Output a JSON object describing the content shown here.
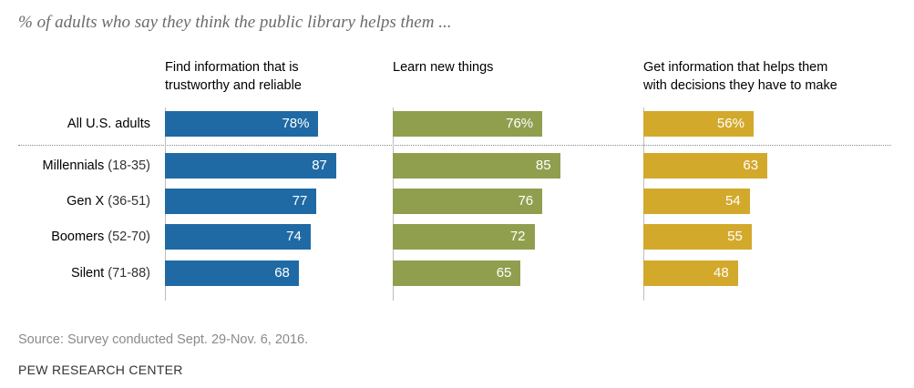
{
  "subtitle": "% of adults who say they think the public library helps them ...",
  "source": "Source: Survey conducted Sept. 29-Nov. 6, 2016.",
  "brand": "PEW RESEARCH CENTER",
  "rows": [
    {
      "name": "All U.S. adults",
      "sub": ""
    },
    {
      "name": "Millennials",
      "sub": "(18-35)"
    },
    {
      "name": "Gen X",
      "sub": "(36-51)"
    },
    {
      "name": "Boomers",
      "sub": "(52-70)"
    },
    {
      "name": "Silent",
      "sub": "(71-88)"
    }
  ],
  "chart_data": {
    "type": "bar",
    "categories": [
      "All U.S. adults",
      "Millennials (18-35)",
      "Gen X (36-51)",
      "Boomers (52-70)",
      "Silent (71-88)"
    ],
    "series": [
      {
        "name": "Find information that is\ntrustworthy and reliable",
        "values": [
          78,
          87,
          77,
          74,
          68
        ],
        "labels": [
          "78%",
          "87",
          "77",
          "74",
          "68"
        ],
        "color": "#1f6aa5"
      },
      {
        "name": "Learn new things",
        "values": [
          76,
          85,
          76,
          72,
          65
        ],
        "labels": [
          "76%",
          "85",
          "76",
          "72",
          "65"
        ],
        "color": "#8f9f4e"
      },
      {
        "name": "Get information that helps them\nwith decisions they have to make",
        "values": [
          56,
          63,
          54,
          55,
          48
        ],
        "labels": [
          "56%",
          "63",
          "54",
          "55",
          "48"
        ],
        "color": "#d3a92c"
      }
    ],
    "xlim": [
      0,
      100
    ],
    "orientation": "horizontal",
    "grid": false
  }
}
